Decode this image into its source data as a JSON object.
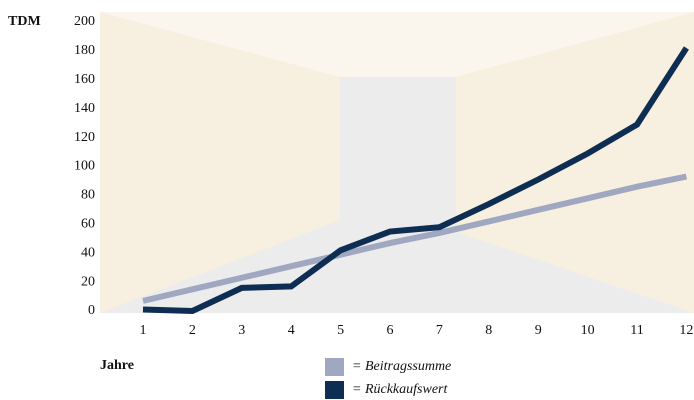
{
  "chart_data": {
    "type": "line",
    "y_label": "TDM",
    "x_label": "Jahre",
    "categories": [
      "1",
      "2",
      "3",
      "4",
      "5",
      "6",
      "7",
      "8",
      "9",
      "10",
      "11",
      "12"
    ],
    "series": [
      {
        "name": "= Beitragssumme",
        "color": "#a0a7c1",
        "values": [
          7,
          15,
          23,
          31,
          39,
          47,
          54,
          62,
          70,
          78,
          86,
          93
        ]
      },
      {
        "name": "= Rückkaufswert",
        "color": "#0d2d52",
        "values": [
          1,
          0,
          16,
          17,
          42,
          55,
          58,
          74,
          91,
          109,
          129,
          182
        ]
      }
    ],
    "ylim": [
      0,
      200
    ],
    "yticks": [
      0,
      20,
      40,
      60,
      80,
      100,
      120,
      140,
      160,
      180,
      200
    ],
    "grid": false
  }
}
